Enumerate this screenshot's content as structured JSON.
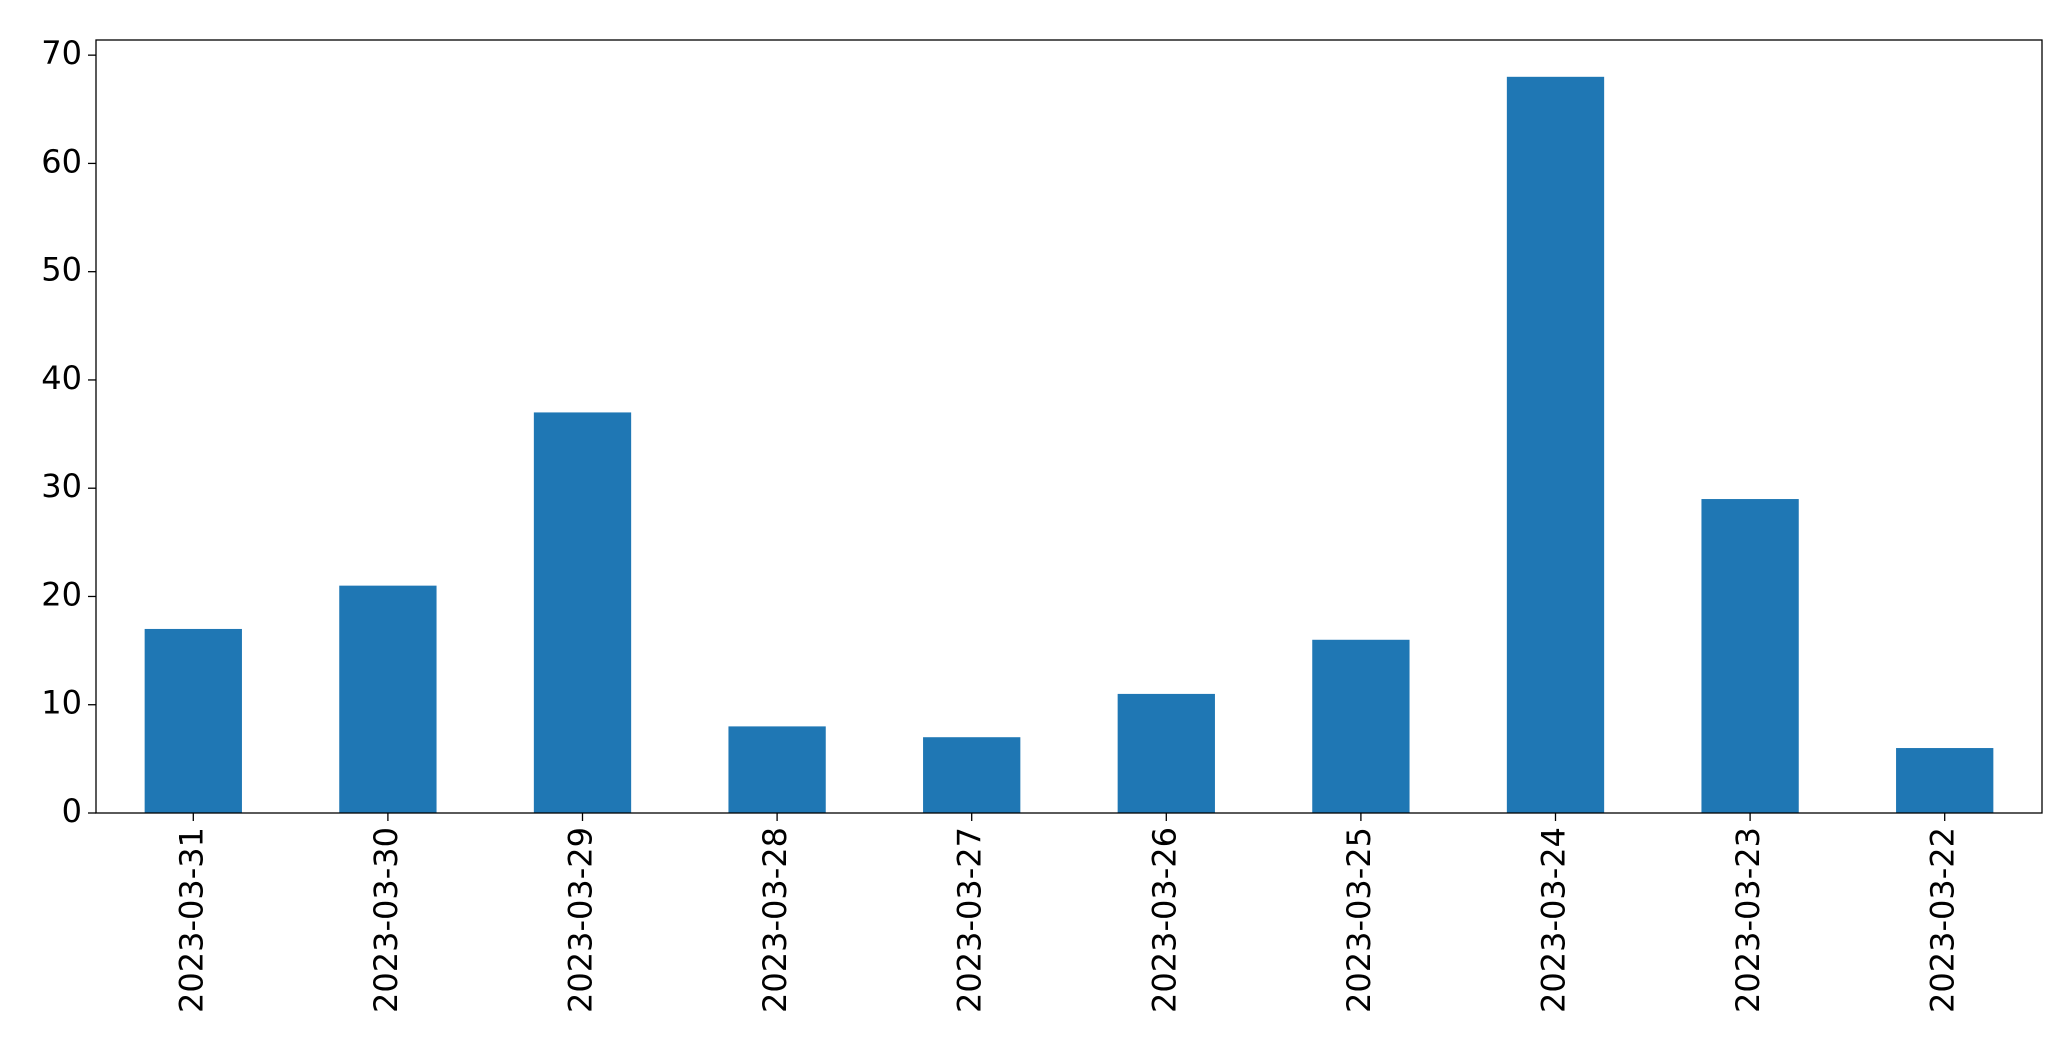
{
  "chart_data": {
    "type": "bar",
    "categories": [
      "2023-03-31",
      "2023-03-30",
      "2023-03-29",
      "2023-03-28",
      "2023-03-27",
      "2023-03-26",
      "2023-03-25",
      "2023-03-24",
      "2023-03-23",
      "2023-03-22"
    ],
    "values": [
      17,
      21,
      37,
      8,
      7,
      11,
      16,
      68,
      29,
      6
    ],
    "color": "#1f77b4",
    "ylim": [
      0,
      71.4
    ],
    "yticks": [
      0,
      10,
      20,
      30,
      40,
      50,
      60,
      70
    ],
    "grid": false
  }
}
